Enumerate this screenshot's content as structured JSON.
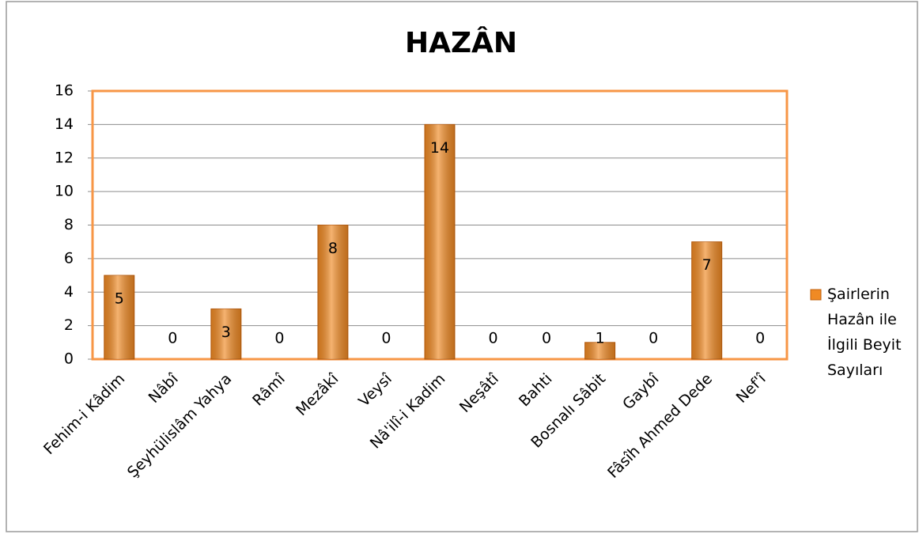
{
  "chart_data": {
    "type": "bar",
    "title": "HAZÂN",
    "categories": [
      "Fehim-i Kâdim",
      "Nâbî",
      "Şeyhülislâm Yahya",
      "Râmî",
      "Mezâkî",
      "Veysî",
      "Nâ'ilî-i Kadim",
      "Neşâtî",
      "Bahti",
      "Bosnalı Sâbit",
      "Gaybî",
      "Fâsîh Ahmed Dede",
      "Nef'î"
    ],
    "series": [
      {
        "name": "Şairlerin Hazân ile İlgili Beyit Sayıları",
        "color": "#f08a24",
        "values": [
          5,
          0,
          3,
          0,
          8,
          0,
          14,
          0,
          0,
          1,
          0,
          7,
          0
        ]
      }
    ],
    "ylim": [
      0,
      16
    ],
    "yticks": [
      0,
      2,
      4,
      6,
      8,
      10,
      12,
      14,
      16
    ],
    "grid": true,
    "legend": "right"
  }
}
